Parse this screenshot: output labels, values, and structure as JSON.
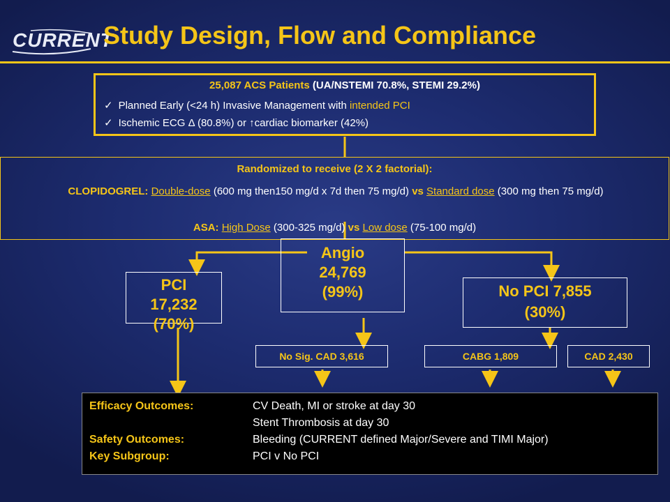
{
  "logo": {
    "text": "CURRENT"
  },
  "title": "Study Design, Flow and Compliance",
  "top_box": {
    "count": "25,087 ACS Patients",
    "split": "(UA/NSTEMI 70.8%, STEMI 29.2%)",
    "items": [
      {
        "check": "✓",
        "text": "Planned Early (<24 h) Invasive Management with ",
        "highlight": "intended PCI"
      },
      {
        "check": "✓",
        "text": "Ischemic ECG Δ (80.8%) or ↑cardiac biomarker (42%)"
      }
    ]
  },
  "randomized": {
    "title": "Randomized to receive (2 X 2 factorial):",
    "clop_label": "CLOPIDOGREL:",
    "clop_high": "Double-dose",
    "clop_high_detail": "(600 mg then150 mg/d x 7d then 75 mg/d)",
    "vs": "vs",
    "clop_std": "Standard dose",
    "clop_std_detail": "(300 mg then 75 mg/d)",
    "asa_label": "ASA:",
    "asa_high": "High Dose",
    "asa_high_detail": "(300-325 mg/d)",
    "asa_vs": "vs",
    "asa_low": "Low dose",
    "asa_low_detail": "(75-100 mg/d)"
  },
  "angio": {
    "l1": "Angio",
    "l2": "24,769",
    "l3": "(99%)"
  },
  "pci": {
    "l1": "PCI",
    "l2": "17,232",
    "l3": "(70%)"
  },
  "nopci": {
    "l1": "No PCI 7,855",
    "l2": "(30%)"
  },
  "subs": {
    "nosig": "No Sig. CAD 3,616",
    "cabg": "CABG 1,809",
    "cad": "CAD 2,430"
  },
  "outcomes": [
    {
      "label": "Efficacy Outcomes:",
      "value": "CV Death, MI or stroke at day 30"
    },
    {
      "label": "",
      "value": "Stent Thrombosis at day 30"
    },
    {
      "label": "Safety Outcomes:",
      "value": "Bleeding (CURRENT defined Major/Severe and TIMI Major)"
    },
    {
      "label": "Key Subgroup:",
      "value": "PCI v No PCI"
    }
  ],
  "colors": {
    "accent": "#f5c518",
    "background": "#1d2c70",
    "outcome_bg": "#000000"
  }
}
